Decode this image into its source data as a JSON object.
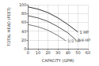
{
  "chart_data": {
    "type": "line",
    "x_label": "CAPACITY (GPM)",
    "y_label": "TOTAL HEAD (FEET)",
    "series": [
      {
        "name": "1 HP",
        "color": "#333333",
        "x": [
          0,
          10,
          20,
          30,
          40,
          50
        ],
        "values": [
          95,
          90,
          82,
          70,
          55,
          38
        ]
      },
      {
        "name": "3/4 HP",
        "color": "#555555",
        "x": [
          0,
          10,
          20,
          30,
          40,
          48
        ],
        "values": [
          75,
          70,
          62,
          50,
          36,
          20
        ]
      },
      {
        "name": "1/2 HP",
        "color": "#777777",
        "x": [
          0,
          10,
          20,
          30,
          38
        ],
        "values": [
          55,
          50,
          42,
          30,
          18
        ]
      }
    ],
    "xlim": [
      0,
      60
    ],
    "xticks": [
      0,
      10,
      20,
      30,
      40,
      50,
      60
    ],
    "ylim": [
      0,
      100
    ],
    "yticks": [
      0,
      20,
      40,
      60,
      80,
      100
    ],
    "grid": true
  }
}
